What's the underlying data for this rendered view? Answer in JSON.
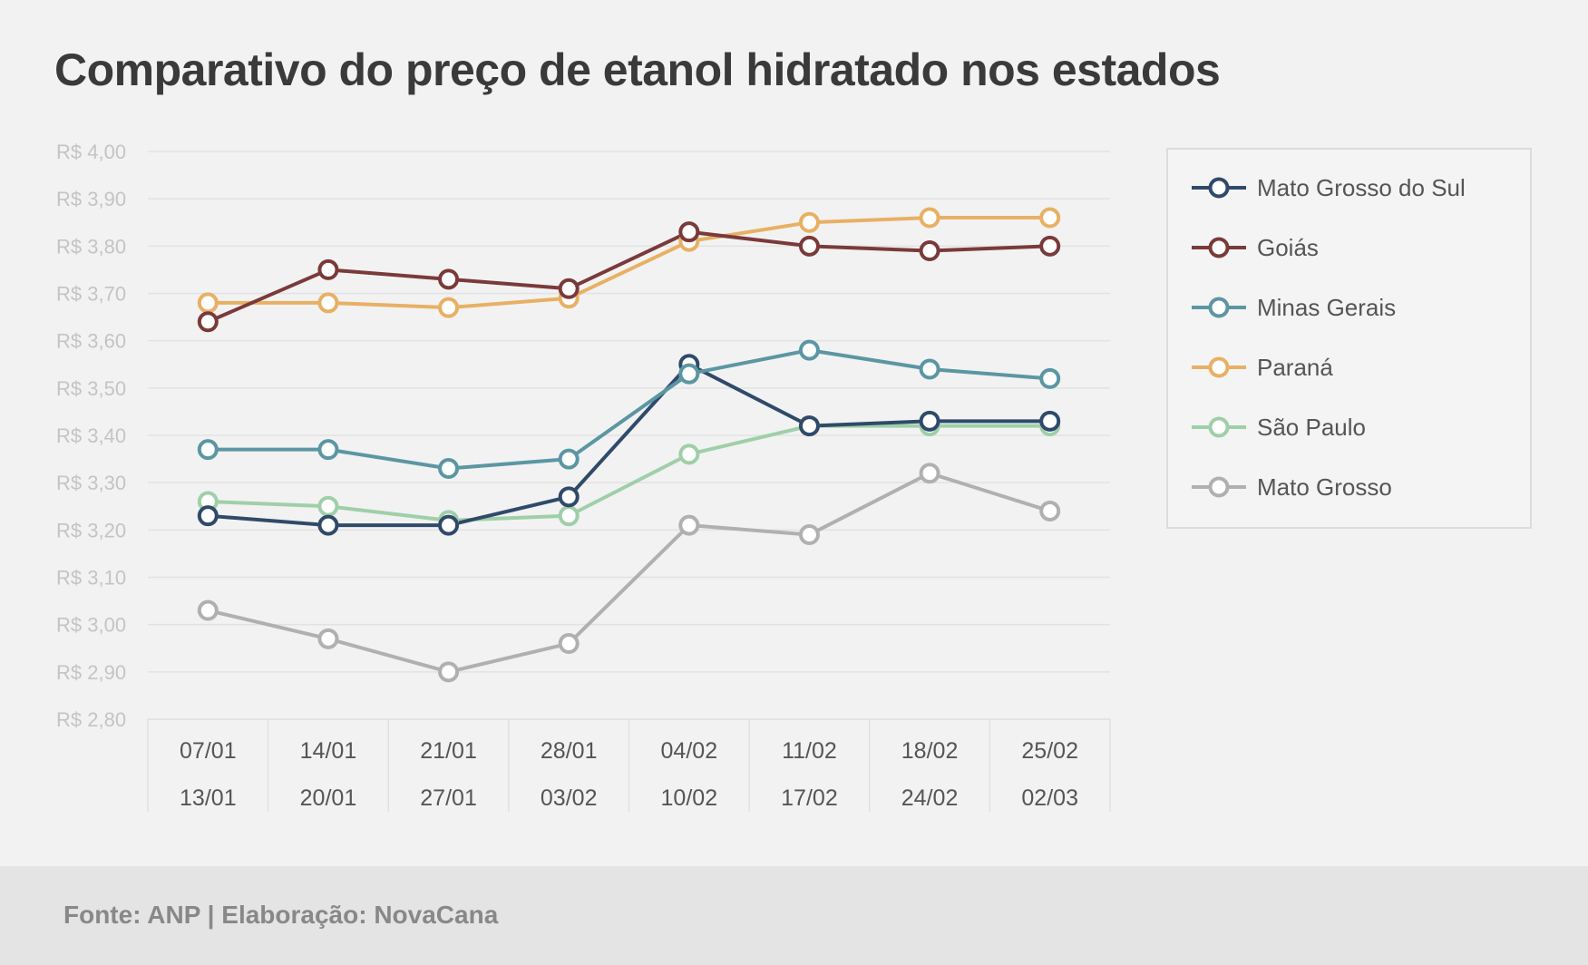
{
  "title": "Comparativo do preço de etanol hidratado nos estados",
  "source": "Fonte: ANP | Elaboração: NovaCana",
  "chart_data": {
    "type": "line",
    "title": "Comparativo do preço de etanol hidratado nos estados",
    "xlabel": "",
    "ylabel": "",
    "ylim": [
      2.8,
      4.0
    ],
    "ytick_values": [
      2.8,
      2.9,
      3.0,
      3.1,
      3.2,
      3.3,
      3.4,
      3.5,
      3.6,
      3.7,
      3.8,
      3.9,
      4.0
    ],
    "ytick_labels": [
      "R$ 2,80",
      "R$ 2,90",
      "R$ 3,00",
      "R$ 3,10",
      "R$ 3,20",
      "R$ 3,30",
      "R$ 3,40",
      "R$ 3,50",
      "R$ 3,60",
      "R$ 3,70",
      "R$ 3,80",
      "R$ 3,90",
      "R$ 4,00"
    ],
    "categories": [
      [
        "07/01",
        "13/01"
      ],
      [
        "14/01",
        "20/01"
      ],
      [
        "21/01",
        "27/01"
      ],
      [
        "28/01",
        "03/02"
      ],
      [
        "04/02",
        "10/02"
      ],
      [
        "11/02",
        "17/02"
      ],
      [
        "18/02",
        "24/02"
      ],
      [
        "25/02",
        "02/03"
      ]
    ],
    "grid": true,
    "legend_position": "right",
    "series": [
      {
        "name": "Mato Grosso",
        "color": "#b0b0b0",
        "values": [
          3.03,
          2.97,
          2.9,
          2.96,
          3.21,
          3.19,
          3.32,
          3.24
        ]
      },
      {
        "name": "São Paulo",
        "color": "#9fcfa8",
        "values": [
          3.26,
          3.25,
          3.22,
          3.23,
          3.36,
          3.42,
          3.42,
          3.42
        ]
      },
      {
        "name": "Mato Grosso do Sul",
        "color": "#2f4a6a",
        "values": [
          3.23,
          3.21,
          3.21,
          3.27,
          3.55,
          3.42,
          3.43,
          3.43
        ]
      },
      {
        "name": "Minas Gerais",
        "color": "#5b96a3",
        "values": [
          3.37,
          3.37,
          3.33,
          3.35,
          3.53,
          3.58,
          3.54,
          3.52
        ]
      },
      {
        "name": "Paraná",
        "color": "#e8b064",
        "values": [
          3.68,
          3.68,
          3.67,
          3.69,
          3.81,
          3.85,
          3.86,
          3.86
        ]
      },
      {
        "name": "Goiás",
        "color": "#7a3a3a",
        "values": [
          3.64,
          3.75,
          3.73,
          3.71,
          3.83,
          3.8,
          3.79,
          3.8
        ]
      }
    ],
    "legend_order": [
      "Mato Grosso do Sul",
      "Goiás",
      "Minas Gerais",
      "Paraná",
      "São Paulo",
      "Mato Grosso"
    ]
  }
}
